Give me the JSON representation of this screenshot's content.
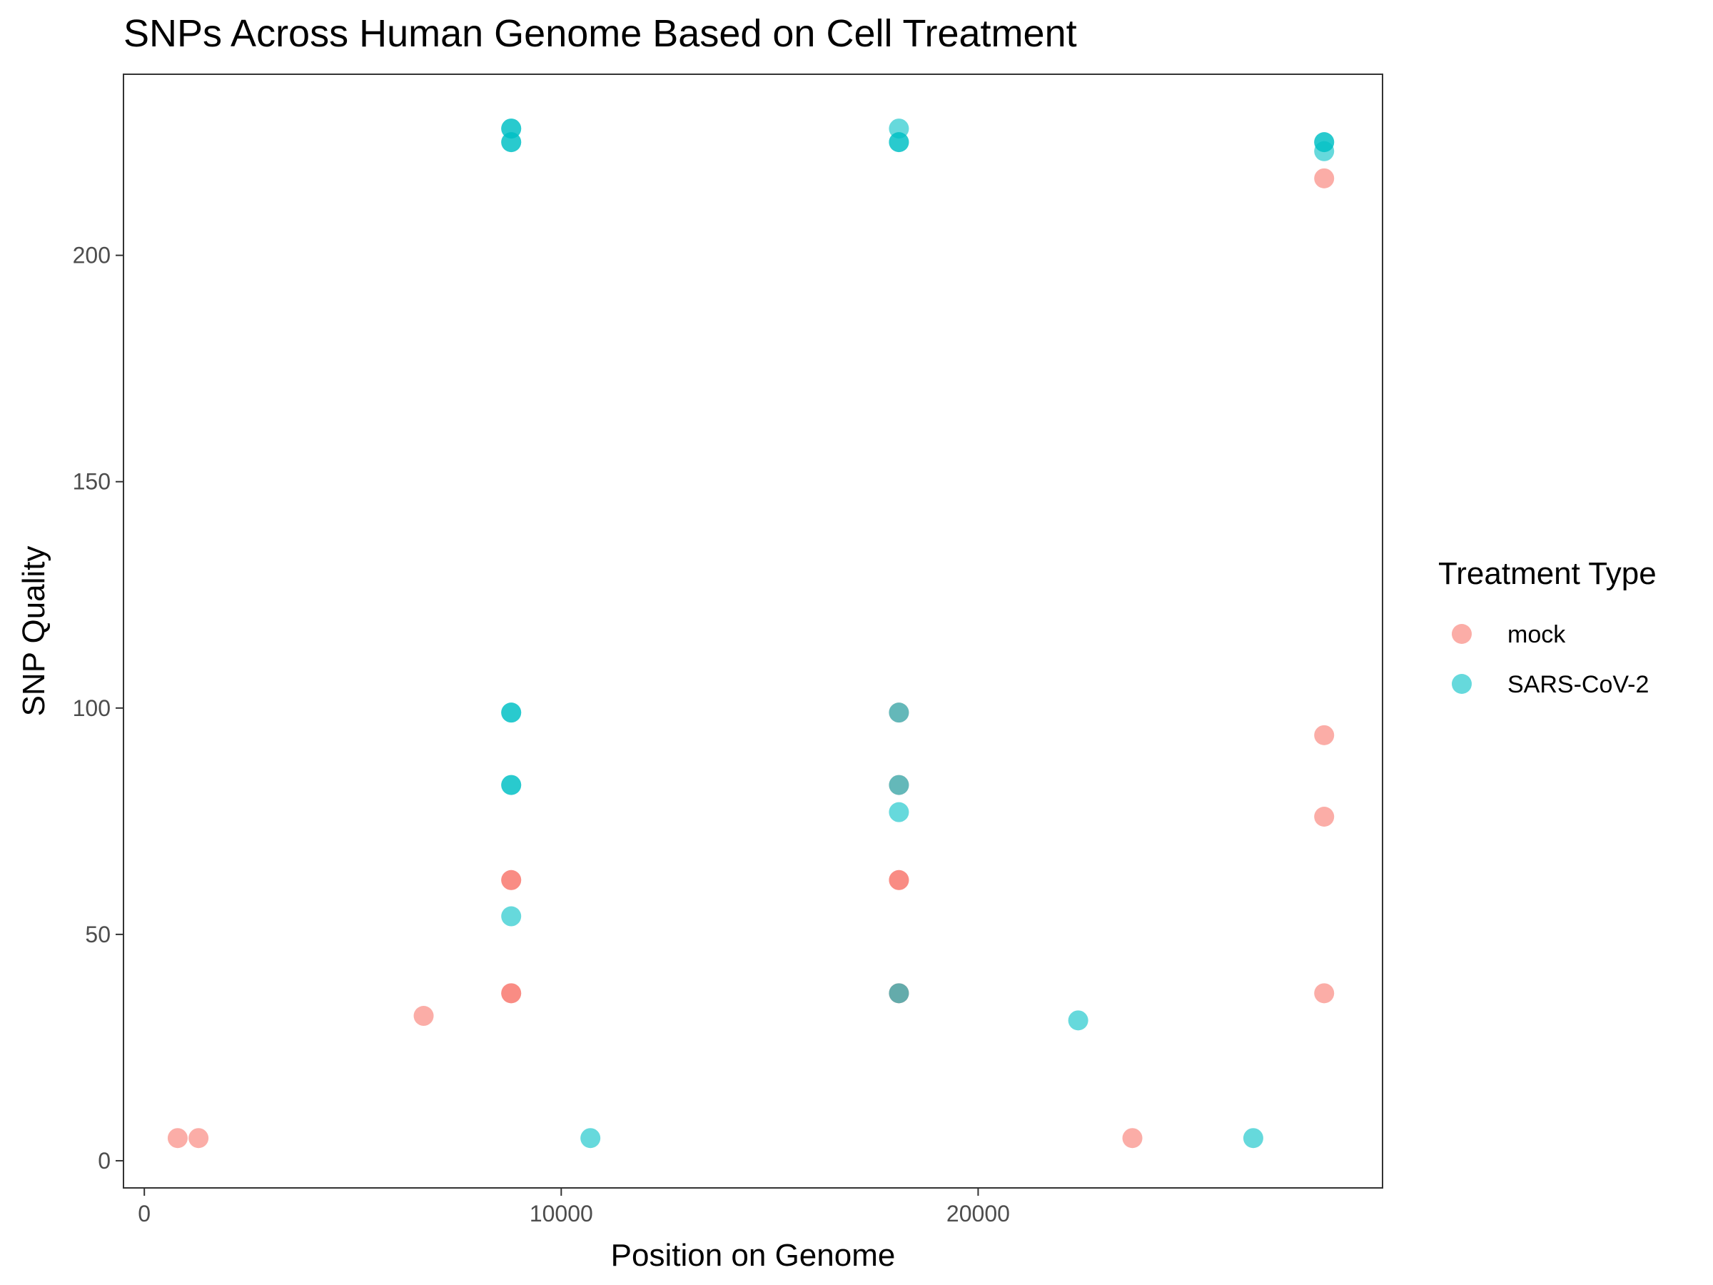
{
  "chart_data": {
    "type": "scatter",
    "title": "SNPs Across Human Genome Based on Cell Treatment",
    "xlabel": "Position on Genome",
    "ylabel": "SNP Quality",
    "xlim": [
      -500,
      29700
    ],
    "ylim": [
      -6,
      240
    ],
    "x_ticks": [
      0,
      10000,
      20000
    ],
    "y_ticks": [
      0,
      50,
      100,
      150,
      200
    ],
    "x_tick_labels": [
      "0",
      "10000",
      "20000"
    ],
    "y_tick_labels": [
      "0",
      "50",
      "100",
      "150",
      "200"
    ],
    "grid": false,
    "legend": {
      "title": "Treatment Type",
      "position": "right"
    },
    "point_opacity": 0.6,
    "series": [
      {
        "name": "mock",
        "color": "#F8766D",
        "points": [
          [
            800,
            5
          ],
          [
            1300,
            5
          ],
          [
            6700,
            32
          ],
          [
            8800,
            62
          ],
          [
            8800,
            62
          ],
          [
            8800,
            37
          ],
          [
            8800,
            37
          ],
          [
            18100,
            62
          ],
          [
            18100,
            62
          ],
          [
            18100,
            37
          ],
          [
            18100,
            37
          ],
          [
            18100,
            99
          ],
          [
            18100,
            83
          ],
          [
            23700,
            5
          ],
          [
            28300,
            217
          ],
          [
            28300,
            94
          ],
          [
            28300,
            76
          ],
          [
            28300,
            37
          ]
        ]
      },
      {
        "name": "SARS-CoV-2",
        "color": "#00BFC4",
        "points": [
          [
            8800,
            228
          ],
          [
            8800,
            228
          ],
          [
            8800,
            225
          ],
          [
            8800,
            225
          ],
          [
            8800,
            99
          ],
          [
            8800,
            99
          ],
          [
            8800,
            83
          ],
          [
            8800,
            83
          ],
          [
            8800,
            54
          ],
          [
            10700,
            5
          ],
          [
            18100,
            228
          ],
          [
            18100,
            225
          ],
          [
            18100,
            225
          ],
          [
            18100,
            99
          ],
          [
            18100,
            83
          ],
          [
            18100,
            77
          ],
          [
            18100,
            37
          ],
          [
            22400,
            31
          ],
          [
            26600,
            5
          ],
          [
            28300,
            225
          ],
          [
            28300,
            225
          ],
          [
            28300,
            223
          ]
        ]
      }
    ]
  }
}
